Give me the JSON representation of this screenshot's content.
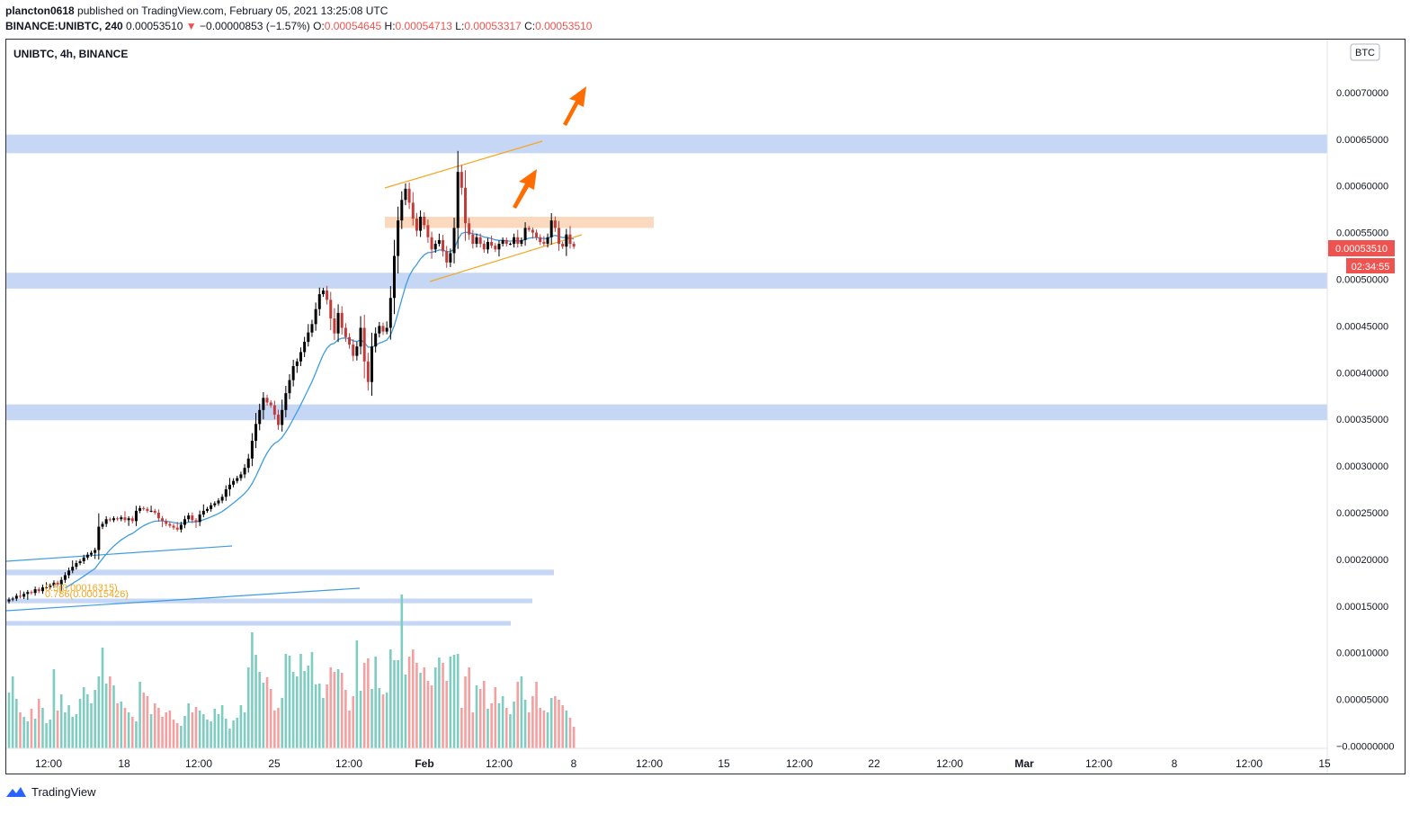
{
  "header": {
    "user": "plancton0618",
    "published": "published on TradingView.com, February 05, 2021 13:25:08 UTC",
    "symbol": "BINANCE:UNIBTC, 240",
    "last": "0.00053510",
    "arrow": "▼",
    "change": "−0.00000853 (−1.57%)",
    "o_label": "O:",
    "o_value": "0.00054645",
    "h_label": "H:",
    "h_value": "0.00054713",
    "l_label": "L:",
    "l_value": "0.00053317",
    "c_label": "C:",
    "c_value": "0.00053510"
  },
  "chart_data": {
    "type": "candlestick",
    "title": "UNIBTC, 4h, BINANCE",
    "currency_badge": "BTC",
    "last_price": "0.00053510",
    "countdown": "02:34:55",
    "ylim": [
      -1e-08,
      0.000755
    ],
    "y_ticks": [
      "0.00070000",
      "0.00065000",
      "0.00060000",
      "0.00055000",
      "0.00050000",
      "0.00045000",
      "0.00040000",
      "0.00035000",
      "0.00030000",
      "0.00025000",
      "0.00020000",
      "0.00015000",
      "0.00010000",
      "0.00005000",
      "−0.00000000"
    ],
    "y_tick_values": [
      0.0007,
      0.00065,
      0.0006,
      0.00055,
      0.0005,
      0.00045,
      0.0004,
      0.00035,
      0.0003,
      0.00025,
      0.0002,
      0.00015,
      0.0001,
      5e-05,
      0
    ],
    "x_ticks": [
      "12:00",
      "18",
      "12:00",
      "25",
      "12:00",
      "Feb",
      "12:00",
      "8",
      "12:00",
      "15",
      "12:00",
      "22",
      "12:00",
      "Mar",
      "12:00",
      "8",
      "12:00",
      "15"
    ],
    "candles": {
      "start": 0.000155,
      "closes": [
        0.000157,
        0.000158,
        0.000161,
        0.00016,
        0.000163,
        0.000165,
        0.000164,
        0.000168,
        0.000166,
        0.00017,
        0.00017,
        0.000172,
        0.000175,
        0.000173,
        0.000178,
        0.000183,
        0.000188,
        0.000192,
        0.000196,
        0.000198,
        0.000202,
        0.000205,
        0.000207,
        0.00021,
        0.000235,
        0.000238,
        0.000243,
        0.000242,
        0.000244,
        0.000243,
        0.000245,
        0.000242,
        0.000244,
        0.000241,
        0.000252,
        0.000255,
        0.000254,
        0.000252,
        0.000252,
        0.00025,
        0.000244,
        0.000241,
        0.000238,
        0.000236,
        0.000234,
        0.000232,
        0.000237,
        0.000243,
        0.000247,
        0.000242,
        0.00024,
        0.000248,
        0.000252,
        0.000254,
        0.000258,
        0.00026,
        0.000263,
        0.000267,
        0.000275,
        0.00028,
        0.000284,
        0.000287,
        0.000291,
        0.000298,
        0.000308,
        0.000327,
        0.000345,
        0.00036,
        0.000373,
        0.000368,
        0.000365,
        0.000355,
        0.000344,
        0.00036,
        0.000378,
        0.000392,
        0.000407,
        0.000412,
        0.000422,
        0.000433,
        0.000443,
        0.000452,
        0.000468,
        0.000484,
        0.000488,
        0.000478,
        0.000458,
        0.000442,
        0.000464,
        0.000448,
        0.000438,
        0.00043,
        0.000418,
        0.000428,
        0.000448,
        0.000412,
        0.00039,
        0.000428,
        0.000442,
        0.00045,
        0.000444,
        0.000448,
        0.00048,
        0.000525,
        0.000563,
        0.000585,
        0.000597,
        0.000582,
        0.000565,
        0.000552,
        0.000567,
        0.000558,
        0.000545,
        0.000532,
        0.000538,
        0.000542,
        0.00053,
        0.000518,
        0.000528,
        0.000555,
        0.000615,
        0.000598,
        0.00056,
        0.000548,
        0.000538,
        0.000545,
        0.000538,
        0.000532,
        0.00054,
        0.000536,
        0.000532,
        0.000538,
        0.000542,
        0.000538,
        0.000538,
        0.000545,
        0.000538,
        0.000542,
        0.000555,
        0.000553,
        0.00055,
        0.000545,
        0.00054,
        0.000538,
        0.000545,
        0.000563,
        0.000555,
        0.000538,
        0.000535,
        0.000548,
        0.000538,
        0.000535
      ]
    },
    "volume": [
      62,
      80,
      55,
      40,
      35,
      30,
      44,
      33,
      55,
      45,
      28,
      32,
      88,
      42,
      60,
      40,
      48,
      35,
      38,
      55,
      68,
      60,
      50,
      65,
      80,
      112,
      72,
      80,
      70,
      50,
      52,
      45,
      40,
      35,
      30,
      74,
      62,
      58,
      38,
      50,
      45,
      35,
      40,
      42,
      32,
      28,
      25,
      36,
      50,
      40,
      46,
      42,
      38,
      32,
      30,
      44,
      38,
      48,
      33,
      22,
      31,
      34,
      48,
      40,
      90,
      129,
      104,
      85,
      73,
      79,
      66,
      42,
      45,
      56,
      105,
      103,
      85,
      80,
      105,
      86,
      92,
      107,
      71,
      72,
      56,
      71,
      90,
      85,
      88,
      84,
      65,
      42,
      58,
      120,
      64,
      95,
      100,
      66,
      102,
      67,
      60,
      62,
      110,
      98,
      98,
      171,
      82,
      102,
      110,
      95,
      84,
      90,
      75,
      70,
      90,
      101,
      95,
      75,
      102,
      104,
      105,
      45,
      80,
      90,
      40,
      70,
      66,
      75,
      44,
      50,
      68,
      50,
      58,
      45,
      38,
      52,
      74,
      80,
      54,
      40,
      58,
      74,
      45,
      42,
      40,
      56,
      58,
      54,
      48,
      42,
      34,
      24
    ]
  },
  "annotations": {
    "fib_text_a": "0.786(0.00015426)",
    "fib_text_b": "0.5(0.00016315)"
  },
  "footer": {
    "brand": "TradingView"
  },
  "colors": {
    "bull": "#000000",
    "bear": "#c23b3b",
    "vol_bull": "#7fcdc0",
    "vol_bear": "#f4a0a0",
    "zone": "#c6d7f5",
    "zone_orange": "#fbd9bf",
    "ma": "#3e9de0",
    "channel": "#f5a623",
    "arrow": "#ff6d00",
    "price_label": "#ef5350"
  }
}
